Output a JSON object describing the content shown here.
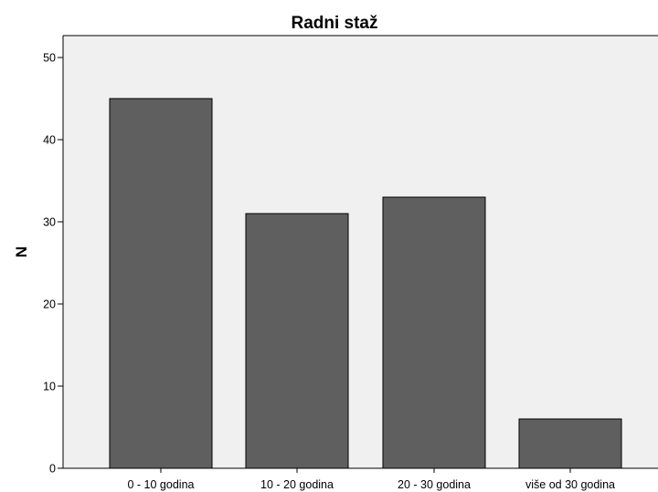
{
  "chart_data": {
    "type": "bar",
    "title": "Radni staž",
    "xlabel": "",
    "ylabel": "N",
    "categories": [
      "0 - 10 godina",
      "10 - 20 godina",
      "20 - 30 godina",
      "više od 30 godina"
    ],
    "values": [
      45,
      31,
      33,
      6
    ],
    "ylim": [
      0,
      50
    ],
    "yticks": [
      0,
      10,
      20,
      30,
      40,
      50
    ],
    "grid": false,
    "legend": "none",
    "colors": {
      "bar_fill": "#5f5f5f",
      "plot_background": "#f0f0f0"
    }
  }
}
